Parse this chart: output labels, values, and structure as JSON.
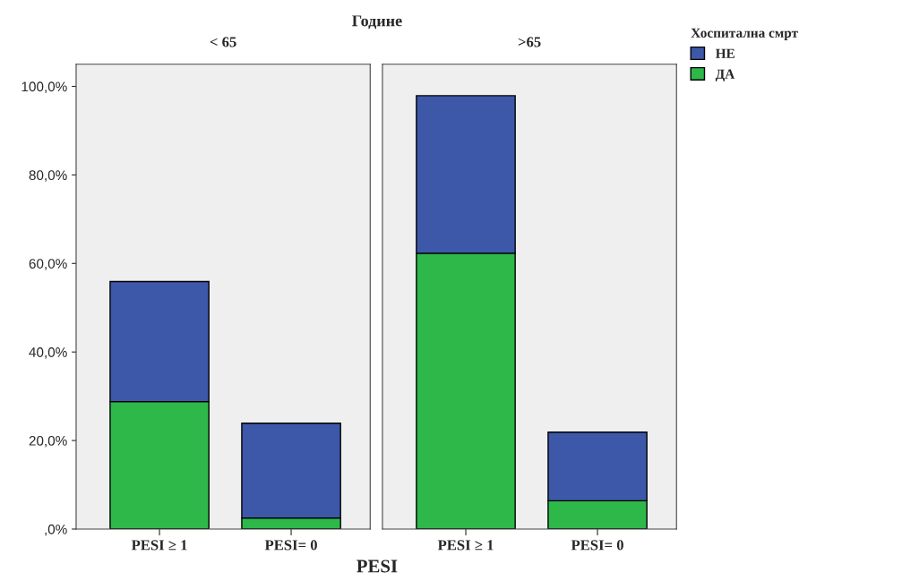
{
  "chart_data": [
    {
      "type": "bar",
      "stacked": true,
      "title": "< 65",
      "annotations": [
        "Године"
      ],
      "xlabel": "PESI",
      "categories": [
        "PESI ≥ 1",
        "PESI= 0"
      ],
      "series": [
        {
          "color": "#2eb84a",
          "values": [
            28.8,
            2.5
          ]
        },
        {
          "color": "#3d58a8",
          "values": [
            27.1,
            21.4
          ]
        }
      ],
      "ylim": [
        0,
        105
      ],
      "yticks": [
        {
          "value": 0,
          "label": ",0%"
        },
        {
          "value": 20,
          "label": "20,0%"
        },
        {
          "value": 40,
          "label": "40,0%"
        },
        {
          "value": 60,
          "label": "60,0%"
        },
        {
          "value": 80,
          "label": "80,0%"
        },
        {
          "value": 100,
          "label": "100,0%"
        }
      ],
      "legend": false
    },
    {
      "type": "bar",
      "stacked": true,
      "title": ">65",
      "legend_title": "Хоспитална смрт",
      "categories": [
        "PESI ≥ 1",
        "PESI= 0"
      ],
      "series": [
        {
          "name": "ДА",
          "color": "#2eb84a",
          "values": [
            62.3,
            6.4
          ]
        },
        {
          "name": "НЕ",
          "color": "#3d58a8",
          "values": [
            35.6,
            15.5
          ]
        }
      ],
      "ylim": [
        0,
        105
      ],
      "tick_labels": "x",
      "legend": "right"
    }
  ]
}
